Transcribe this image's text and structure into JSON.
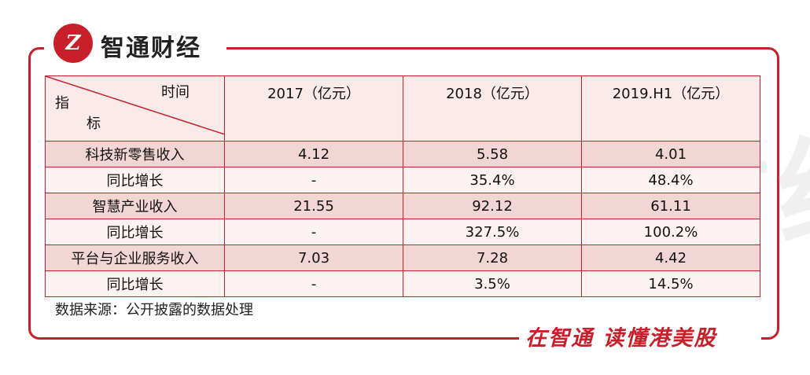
{
  "brand": {
    "logo_text": "Z",
    "name": "智通财经"
  },
  "watermark": "智通财经",
  "table": {
    "corner_top": "时间",
    "corner_left_1": "指",
    "corner_left_2": "标",
    "columns": [
      "2017（亿元）",
      "2018（亿元）",
      "2019.H1（亿元）"
    ],
    "rows": [
      {
        "label": "科技新零售收入",
        "values": [
          "4.12",
          "5.58",
          "4.01"
        ]
      },
      {
        "label": "同比增长",
        "values": [
          "-",
          "35.4%",
          "48.4%"
        ]
      },
      {
        "label": "智慧产业收入",
        "values": [
          "21.55",
          "92.12",
          "61.11"
        ]
      },
      {
        "label": "同比增长",
        "values": [
          "-",
          "327.5%",
          "100.2%"
        ]
      },
      {
        "label": "平台与企业服务收入",
        "values": [
          "7.03",
          "7.28",
          "4.42"
        ]
      },
      {
        "label": "同比增长",
        "values": [
          "-",
          "3.5%",
          "14.5%"
        ]
      }
    ]
  },
  "source_note": "数据来源：公开披露的数据处理",
  "slogan": "在智通 读懂港美股",
  "colors": {
    "accent": "#c8202a",
    "row_shade": "#f2d6d6",
    "row_plain": "#fdf2f2"
  }
}
